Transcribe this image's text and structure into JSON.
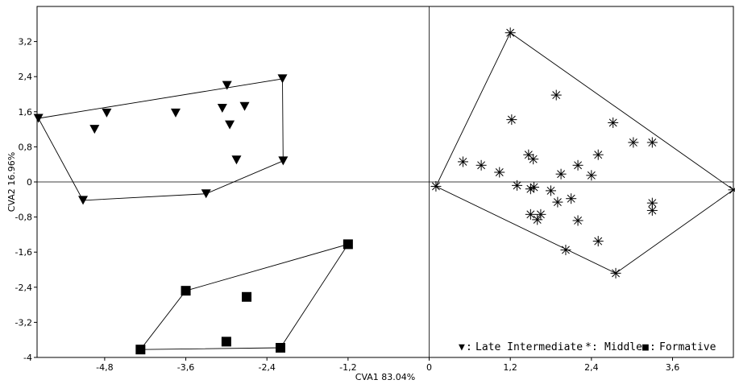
{
  "chart_data": {
    "type": "scatter",
    "xlabel": "CVA1 83.04%",
    "ylabel": "CVA2 16.96%",
    "xlim": [
      -5.8,
      4.5
    ],
    "ylim": [
      -4.0,
      4.0
    ],
    "x_ticks": [
      -4.8,
      -3.6,
      -2.4,
      -1.2,
      0,
      1.2,
      2.4,
      3.6
    ],
    "x_tick_labels": [
      "-4,8",
      "-3,6",
      "-2,4",
      "-1,2",
      "0",
      "1,2",
      "2,4",
      "3,6"
    ],
    "y_ticks": [
      3.2,
      2.4,
      1.6,
      0.8,
      0,
      -0.8,
      -1.6,
      -2.4,
      -3.2,
      -4.0
    ],
    "y_tick_labels": [
      "3,2",
      "2,4",
      "1,6",
      "0,8",
      "0",
      "-0,8",
      "-1,6",
      "-2,4",
      "-3,2",
      "-4"
    ],
    "show_zero_lines": true,
    "convex_hulls": true,
    "legend": {
      "placement": "bottom-right",
      "separator": ": ",
      "glyphs": [
        "▼",
        "*",
        "■"
      ],
      "labels": [
        "Late Intermediate",
        "Middle",
        "Formative"
      ]
    },
    "series": [
      {
        "name": "Late Intermediate",
        "marker": "triangle-down",
        "points": [
          [
            -5.78,
            1.45
          ],
          [
            -4.95,
            1.2
          ],
          [
            -4.77,
            1.57
          ],
          [
            -3.75,
            1.57
          ],
          [
            -3.06,
            1.68
          ],
          [
            -2.99,
            2.2
          ],
          [
            -2.95,
            1.3
          ],
          [
            -2.85,
            0.5
          ],
          [
            -2.73,
            1.72
          ],
          [
            -2.17,
            2.35
          ],
          [
            -2.16,
            0.48
          ],
          [
            -5.12,
            -0.42
          ],
          [
            -3.3,
            -0.27
          ]
        ],
        "hull": [
          [
            -5.78,
            1.45
          ],
          [
            -2.17,
            2.35
          ],
          [
            -2.16,
            0.48
          ],
          [
            -3.3,
            -0.27
          ],
          [
            -5.12,
            -0.42
          ]
        ]
      },
      {
        "name": "Middle",
        "marker": "asterisk",
        "points": [
          [
            1.2,
            3.4
          ],
          [
            1.88,
            1.98
          ],
          [
            1.22,
            1.42
          ],
          [
            2.72,
            1.35
          ],
          [
            3.02,
            0.9
          ],
          [
            3.3,
            0.9
          ],
          [
            2.5,
            0.62
          ],
          [
            1.47,
            0.62
          ],
          [
            1.54,
            0.52
          ],
          [
            0.5,
            0.46
          ],
          [
            0.77,
            0.38
          ],
          [
            2.2,
            0.38
          ],
          [
            1.04,
            0.22
          ],
          [
            1.95,
            0.18
          ],
          [
            2.4,
            0.15
          ],
          [
            1.3,
            -0.08
          ],
          [
            1.55,
            -0.12
          ],
          [
            1.5,
            -0.16
          ],
          [
            1.8,
            -0.2
          ],
          [
            0.1,
            -0.1
          ],
          [
            2.1,
            -0.38
          ],
          [
            1.9,
            -0.46
          ],
          [
            3.3,
            -0.48
          ],
          [
            3.3,
            -0.65
          ],
          [
            1.5,
            -0.74
          ],
          [
            1.65,
            -0.74
          ],
          [
            1.6,
            -0.86
          ],
          [
            2.2,
            -0.88
          ],
          [
            2.5,
            -1.35
          ],
          [
            2.02,
            -1.55
          ],
          [
            2.76,
            -2.08
          ],
          [
            4.5,
            -0.18
          ]
        ],
        "hull": [
          [
            1.2,
            3.4
          ],
          [
            4.5,
            -0.18
          ],
          [
            2.76,
            -2.08
          ],
          [
            0.1,
            -0.1
          ]
        ]
      },
      {
        "name": "Formative",
        "marker": "square",
        "points": [
          [
            -1.2,
            -1.42
          ],
          [
            -3.6,
            -2.48
          ],
          [
            -2.7,
            -2.62
          ],
          [
            -3.0,
            -3.64
          ],
          [
            -4.27,
            -3.82
          ],
          [
            -2.2,
            -3.78
          ]
        ],
        "hull": [
          [
            -1.2,
            -1.42
          ],
          [
            -2.2,
            -3.78
          ],
          [
            -4.27,
            -3.82
          ],
          [
            -3.6,
            -2.48
          ]
        ]
      }
    ]
  }
}
